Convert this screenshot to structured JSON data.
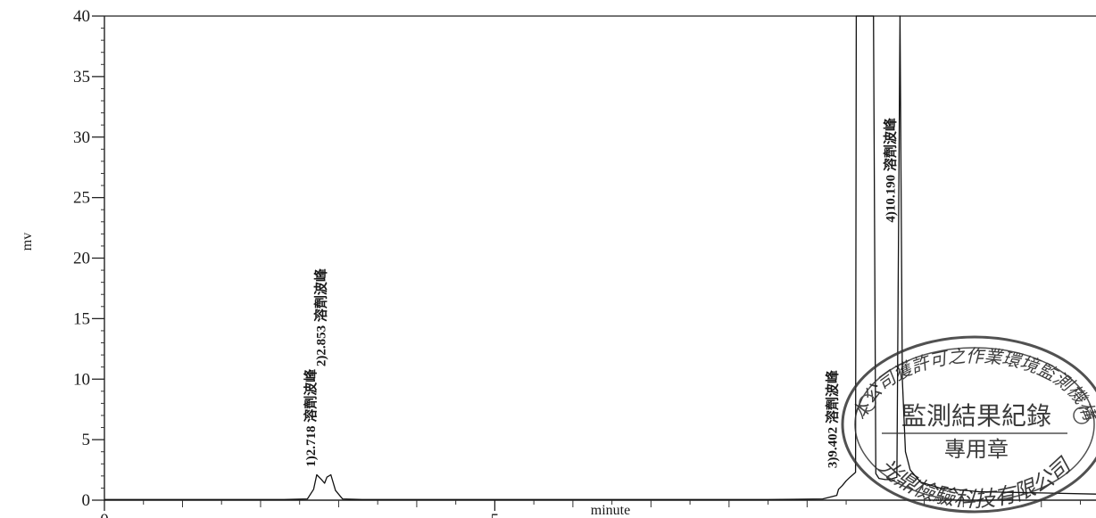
{
  "chart_data": {
    "type": "line",
    "xlabel": "minute",
    "ylabel": "mv",
    "xlim": [
      0,
      12.7
    ],
    "ylim": [
      0,
      40
    ],
    "x_ticks": [
      0,
      5
    ],
    "x_tick_labels": [
      "0",
      "5"
    ],
    "y_ticks": [
      0,
      5,
      10,
      15,
      20,
      25,
      30,
      35,
      40
    ],
    "y_tick_labels": [
      "0",
      "5",
      "10",
      "15",
      "20",
      "25",
      "30",
      "35",
      "40"
    ],
    "grid": false,
    "series": [
      {
        "x": [
          0,
          2.3,
          2.6,
          2.68,
          2.72,
          2.78,
          2.82,
          2.85,
          2.9,
          2.96,
          3.05,
          3.3,
          8.5,
          9.2,
          9.38,
          9.402,
          9.45,
          9.5,
          9.55,
          9.62,
          9.63,
          9.68,
          9.76,
          9.85,
          9.88,
          9.92,
          10.0,
          10.05,
          10.1,
          10.15,
          10.19,
          10.22,
          10.26,
          10.32,
          10.45,
          10.7,
          11.2,
          12.0,
          12.7
        ],
        "y": [
          0.05,
          0.05,
          0.1,
          0.9,
          2.1,
          1.7,
          1.4,
          1.9,
          2.1,
          0.8,
          0.1,
          0.05,
          0.05,
          0.1,
          0.4,
          0.9,
          1.2,
          1.6,
          1.9,
          2.3,
          40,
          40,
          40,
          40,
          2.2,
          1.8,
          1.7,
          1.7,
          1.8,
          1.9,
          40,
          10,
          4,
          2.5,
          1.5,
          1.0,
          0.7,
          0.6,
          0.5
        ]
      }
    ],
    "annotations": [
      {
        "x": 2.718,
        "y": 2.3,
        "text": "1)2.718 溶劑波峰"
      },
      {
        "x": 2.853,
        "y": 10.6,
        "text": "2)2.853 溶劑波峰"
      },
      {
        "x": 9.402,
        "y": 2.2,
        "text": "3)9.402 溶劑波峰"
      },
      {
        "x": 10.19,
        "y": 22.5,
        "text": "4)10.190 溶劑波峰"
      }
    ]
  },
  "stamp": {
    "line1": "本公司獲許可之作業環境監測機構",
    "line2": "監測結果紀錄",
    "line3": "專用章",
    "line4": "光鼎檢驗科技有限公司"
  }
}
